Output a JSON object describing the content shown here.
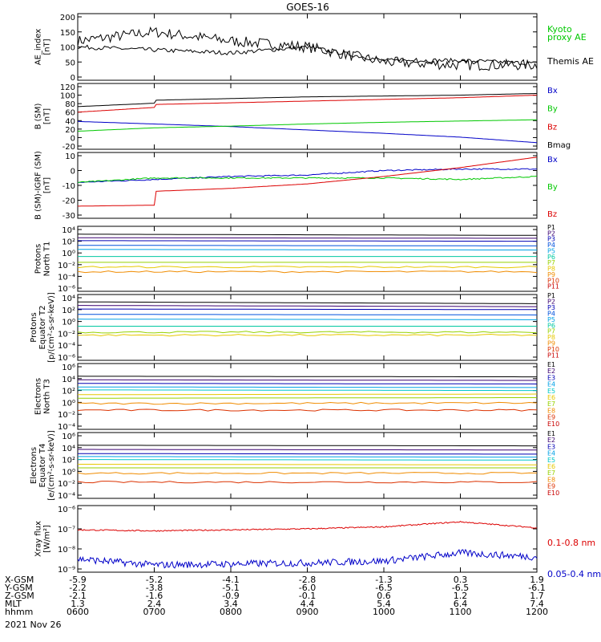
{
  "title": "GOES-16",
  "colors": {
    "black": "#000000",
    "blue": "#0000c8",
    "green": "#00c800",
    "red": "#dc0000",
    "p1": "#000000",
    "p2": "#3a0070",
    "p3": "#0000b4",
    "p4": "#0050dc",
    "p5": "#00a0e6",
    "p6": "#00c8a0",
    "p7": "#96d200",
    "p8": "#e6c800",
    "p9": "#f08c00",
    "p10": "#dc3200",
    "p11": "#c80000"
  },
  "panels": [
    {
      "id": "ae",
      "ylabel": [
        "AE_index",
        "[nT]"
      ],
      "yticks": [
        "200",
        "150",
        "100",
        "50",
        "0"
      ],
      "legend": [
        {
          "text": "Kyoto",
          "color": "#00c800"
        },
        {
          "text": "proxy AE",
          "color": "#00c800"
        },
        {
          "text": "Themis AE",
          "color": "#000000"
        }
      ]
    },
    {
      "id": "bsm",
      "ylabel": [
        "B (SM)",
        "[nT]"
      ],
      "yticks": [
        "120",
        "100",
        "80",
        "60",
        "40",
        "20",
        "0",
        "-20"
      ],
      "legend": [
        {
          "text": "Bx",
          "color": "#0000c8"
        },
        {
          "text": "By",
          "color": "#00c800"
        },
        {
          "text": "Bz",
          "color": "#dc0000"
        },
        {
          "text": "Bmag",
          "color": "#000000"
        }
      ]
    },
    {
      "id": "bigrf",
      "ylabel": [
        "B (SM)-IGRF (SM)",
        "[nT]"
      ],
      "yticks": [
        "10",
        "0",
        "-10",
        "-20",
        "-30"
      ],
      "legend": [
        {
          "text": "Bx",
          "color": "#0000c8"
        },
        {
          "text": "By",
          "color": "#00c800"
        },
        {
          "text": "Bz",
          "color": "#dc0000"
        }
      ]
    },
    {
      "id": "protons-north",
      "ylabel": [
        "Protons",
        "North T1"
      ],
      "yticks": [
        "10⁴",
        "10²",
        "10⁰",
        "10⁻²",
        "10⁻⁴",
        "10⁻⁶"
      ],
      "legend": [
        {
          "text": "P1",
          "color": "#000000"
        },
        {
          "text": "P2",
          "color": "#3a0070"
        },
        {
          "text": "P3",
          "color": "#0000b4"
        },
        {
          "text": "P4",
          "color": "#0050dc"
        },
        {
          "text": "P5",
          "color": "#00a0e6"
        },
        {
          "text": "P6",
          "color": "#00c8a0"
        },
        {
          "text": "P7",
          "color": "#96d200"
        },
        {
          "text": "P8",
          "color": "#e6c800"
        },
        {
          "text": "P9",
          "color": "#f08c00"
        },
        {
          "text": "P10",
          "color": "#dc3200"
        },
        {
          "text": "P11",
          "color": "#c80000"
        }
      ]
    },
    {
      "id": "protons-equator",
      "ylabel": [
        "Protons",
        "Equator T2",
        "[p/(cm²-s-sr-keV)]"
      ],
      "yticks": [
        "10⁴",
        "10²",
        "10⁰",
        "10⁻²",
        "10⁻⁴",
        "10⁻⁶"
      ],
      "legend": [
        {
          "text": "P1",
          "color": "#000000"
        },
        {
          "text": "P2",
          "color": "#3a0070"
        },
        {
          "text": "P3",
          "color": "#0000b4"
        },
        {
          "text": "P4",
          "color": "#0050dc"
        },
        {
          "text": "P5",
          "color": "#00a0e6"
        },
        {
          "text": "P6",
          "color": "#00c8a0"
        },
        {
          "text": "P7",
          "color": "#96d200"
        },
        {
          "text": "P8",
          "color": "#e6c800"
        },
        {
          "text": "P9",
          "color": "#f08c00"
        },
        {
          "text": "P10",
          "color": "#dc3200"
        },
        {
          "text": "P11",
          "color": "#c80000"
        }
      ]
    },
    {
      "id": "electrons-north",
      "ylabel": [
        "Electrons",
        "North T3"
      ],
      "yticks": [
        "10⁶",
        "10⁴",
        "10²",
        "10⁰",
        "10⁻²",
        "10⁻⁴"
      ],
      "legend": [
        {
          "text": "E1",
          "color": "#000000"
        },
        {
          "text": "E2",
          "color": "#3a0070"
        },
        {
          "text": "E3",
          "color": "#0000b4"
        },
        {
          "text": "E4",
          "color": "#00a0e6"
        },
        {
          "text": "E5",
          "color": "#00c8c8"
        },
        {
          "text": "E6",
          "color": "#e6c800"
        },
        {
          "text": "E7",
          "color": "#96d200"
        },
        {
          "text": "E8",
          "color": "#f08c00"
        },
        {
          "text": "E9",
          "color": "#dc3200"
        },
        {
          "text": "E10",
          "color": "#c80000"
        }
      ]
    },
    {
      "id": "electrons-equator",
      "ylabel": [
        "Electrons",
        "Equator T4",
        "[e/(cm²-s-sr-keV)]"
      ],
      "yticks": [
        "10⁶",
        "10⁴",
        "10²",
        "10⁰",
        "10⁻²",
        "10⁻⁴"
      ],
      "legend": [
        {
          "text": "E1",
          "color": "#000000"
        },
        {
          "text": "E2",
          "color": "#3a0070"
        },
        {
          "text": "E3",
          "color": "#0000b4"
        },
        {
          "text": "E4",
          "color": "#00a0e6"
        },
        {
          "text": "E5",
          "color": "#00c8c8"
        },
        {
          "text": "E6",
          "color": "#e6c800"
        },
        {
          "text": "E7",
          "color": "#96d200"
        },
        {
          "text": "E8",
          "color": "#f08c00"
        },
        {
          "text": "E9",
          "color": "#dc3200"
        },
        {
          "text": "E10",
          "color": "#c80000"
        }
      ]
    },
    {
      "id": "xray",
      "ylabel": [
        "Xray  flux",
        "[W/m²]"
      ],
      "yticks": [
        "10⁻⁶",
        "10⁻⁷",
        "10⁻⁸",
        "10⁻⁹"
      ],
      "legend": [
        {
          "text": "0.1-0.8 nm",
          "color": "#dc0000"
        },
        {
          "text": "0.05-0.4 nm",
          "color": "#0000c8"
        }
      ]
    }
  ],
  "footer": {
    "rows": [
      {
        "label": "X-GSM",
        "values": [
          "-5.9",
          "-5.2",
          "-4.1",
          "-2.8",
          "-1.3",
          "0.3",
          "1.9"
        ]
      },
      {
        "label": "Y-GSM",
        "values": [
          "-2.2",
          "-3.8",
          "-5.1",
          "-6.0",
          "-6.5",
          "-6.5",
          "-6.1"
        ]
      },
      {
        "label": "Z-GSM",
        "values": [
          "-2.1",
          "-1.6",
          "-0.9",
          "-0.1",
          "0.6",
          "1.2",
          "1.7"
        ]
      },
      {
        "label": "MLT",
        "values": [
          "1.3",
          "2.4",
          "3.4",
          "4.4",
          "5.4",
          "6.4",
          "7.4"
        ]
      },
      {
        "label": "hhmm",
        "values": [
          "0600",
          "0700",
          "0800",
          "0900",
          "1000",
          "1100",
          "1200"
        ]
      }
    ],
    "date": "2021 Nov 26"
  },
  "chart_data": [
    {
      "type": "line",
      "ylabel": "AE_index [nT]",
      "ylim": [
        0,
        200
      ],
      "x": [
        "0600",
        "0700",
        "0800",
        "0900",
        "1000",
        "1100",
        "1200"
      ],
      "series": [
        {
          "name": "Themis AE",
          "values": [
            120,
            150,
            120,
            100,
            50,
            40,
            40
          ]
        },
        {
          "name": "Kyoto proxy AE",
          "values": [
            100,
            90,
            80,
            100,
            55,
            55,
            45
          ]
        }
      ]
    },
    {
      "type": "line",
      "ylabel": "B (SM) [nT]",
      "ylim": [
        -20,
        120
      ],
      "x": [
        "0600",
        "0700",
        "0800",
        "0900",
        "1000",
        "1100",
        "1200"
      ],
      "series": [
        {
          "name": "Bx",
          "values": [
            38,
            32,
            26,
            18,
            10,
            1,
            -12
          ]
        },
        {
          "name": "By",
          "values": [
            15,
            23,
            27,
            32,
            36,
            39,
            42
          ]
        },
        {
          "name": "Bz",
          "values": [
            67,
            78,
            82,
            86,
            90,
            94,
            100
          ]
        },
        {
          "name": "Bmag",
          "values": [
            80,
            88,
            92,
            96,
            98,
            100,
            104
          ]
        }
      ]
    },
    {
      "type": "line",
      "ylabel": "B (SM)-IGRF (SM) [nT]",
      "ylim": [
        -30,
        10
      ],
      "x": [
        "0600",
        "0700",
        "0800",
        "0900",
        "1000",
        "1100",
        "1200"
      ],
      "series": [
        {
          "name": "Bx",
          "values": [
            -8,
            -6,
            -4,
            -3,
            0,
            1,
            1
          ]
        },
        {
          "name": "By",
          "values": [
            -8,
            -5,
            -5,
            -5,
            -5,
            -6,
            -4
          ]
        },
        {
          "name": "Bz",
          "values": [
            -23,
            -14,
            -12,
            -9,
            -4,
            2,
            9
          ]
        }
      ]
    },
    {
      "type": "line",
      "ylabel": "Protons North T1",
      "log": true,
      "ylim_exp": [
        -6,
        4
      ],
      "x": [
        "0600",
        "1200"
      ],
      "series": [
        {
          "name": "P1",
          "exp": [
            3.2,
            3.0
          ]
        },
        {
          "name": "P2",
          "exp": [
            2.6,
            2.5
          ]
        },
        {
          "name": "P3",
          "exp": [
            2.1,
            2.0
          ]
        },
        {
          "name": "P4",
          "exp": [
            1.3,
            1.2
          ]
        },
        {
          "name": "P5",
          "exp": [
            0.6,
            0.5
          ]
        },
        {
          "name": "P6",
          "exp": [
            -0.6,
            -0.6
          ]
        },
        {
          "name": "P7",
          "exp": [
            -1.6,
            -1.6
          ]
        },
        {
          "name": "P8",
          "exp": [
            -2.4,
            -2.4
          ]
        },
        {
          "name": "P9",
          "exp": [
            -3.2,
            -3.2
          ]
        }
      ]
    },
    {
      "type": "line",
      "ylabel": "Protons Equator T2 [p/(cm²-s-sr-keV)]",
      "log": true,
      "ylim_exp": [
        -6,
        4
      ],
      "x": [
        "0600",
        "1200"
      ],
      "series": [
        {
          "name": "P1",
          "exp": [
            3.3,
            3.0
          ]
        },
        {
          "name": "P2",
          "exp": [
            2.7,
            2.5
          ]
        },
        {
          "name": "P3",
          "exp": [
            2.1,
            2.0
          ]
        },
        {
          "name": "P4",
          "exp": [
            1.2,
            1.1
          ]
        },
        {
          "name": "P5",
          "exp": [
            0.4,
            0.3
          ]
        },
        {
          "name": "P6",
          "exp": [
            -0.8,
            -0.8
          ]
        },
        {
          "name": "P7",
          "exp": [
            -1.8,
            -1.8
          ]
        },
        {
          "name": "P8",
          "exp": [
            -2.3,
            -2.3
          ]
        }
      ]
    },
    {
      "type": "line",
      "ylabel": "Electrons North T3",
      "log": true,
      "ylim_exp": [
        -4,
        6
      ],
      "x": [
        "0600",
        "1200"
      ],
      "series": [
        {
          "name": "E1",
          "exp": [
            4.4,
            4.3
          ]
        },
        {
          "name": "E2",
          "exp": [
            3.8,
            3.7
          ]
        },
        {
          "name": "E3",
          "exp": [
            3.2,
            3.1
          ]
        },
        {
          "name": "E4",
          "exp": [
            2.6,
            2.5
          ]
        },
        {
          "name": "E5",
          "exp": [
            2.1,
            2.0
          ]
        },
        {
          "name": "E6",
          "exp": [
            1.3,
            1.4
          ]
        },
        {
          "name": "E7",
          "exp": [
            0.7,
            0.8
          ]
        },
        {
          "name": "E8",
          "exp": [
            -0.2,
            -0.1
          ]
        },
        {
          "name": "E9",
          "exp": [
            -1.3,
            -1.3
          ]
        }
      ]
    },
    {
      "type": "line",
      "ylabel": "Electrons Equator T4 [e/(cm²-s-sr-keV)]",
      "log": true,
      "ylim_exp": [
        -4,
        6
      ],
      "x": [
        "0600",
        "1200"
      ],
      "series": [
        {
          "name": "E1",
          "exp": [
            4.4,
            4.3
          ]
        },
        {
          "name": "E2",
          "exp": [
            3.7,
            3.6
          ]
        },
        {
          "name": "E3",
          "exp": [
            3.0,
            2.9
          ]
        },
        {
          "name": "E4",
          "exp": [
            2.5,
            2.4
          ]
        },
        {
          "name": "E5",
          "exp": [
            2.0,
            1.9
          ]
        },
        {
          "name": "E6",
          "exp": [
            1.2,
            1.1
          ]
        },
        {
          "name": "E7",
          "exp": [
            0.6,
            0.6
          ]
        },
        {
          "name": "E8",
          "exp": [
            -0.3,
            -0.3
          ]
        },
        {
          "name": "E9",
          "exp": [
            -1.8,
            -1.8
          ]
        }
      ]
    },
    {
      "type": "line",
      "ylabel": "Xray flux [W/m²]",
      "log": true,
      "ylim_exp": [
        -9,
        -6
      ],
      "x": [
        "0600",
        "0700",
        "0800",
        "0900",
        "1000",
        "1100",
        "1200"
      ],
      "series": [
        {
          "name": "0.1-0.8 nm",
          "exp": [
            -7.05,
            -7.1,
            -7.05,
            -7.0,
            -6.9,
            -6.65,
            -6.95
          ]
        },
        {
          "name": "0.05-0.4 nm",
          "exp": [
            -8.5,
            -8.8,
            -8.75,
            -8.7,
            -8.6,
            -8.2,
            -8.4
          ]
        }
      ]
    }
  ]
}
